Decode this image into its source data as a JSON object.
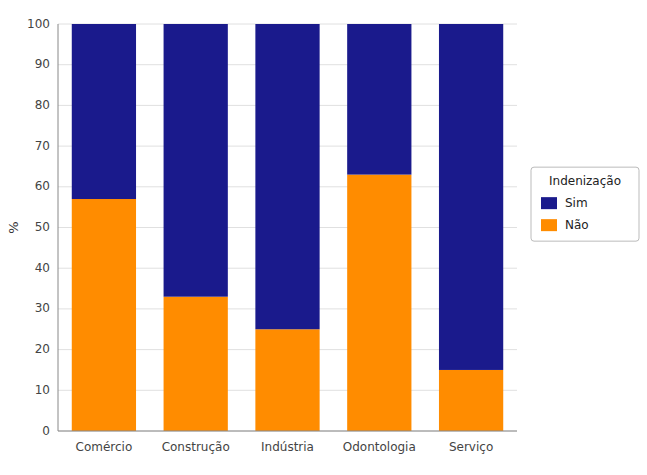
{
  "chart_data": {
    "type": "bar",
    "stacked": true,
    "categories": [
      "Comércio",
      "Construção",
      "Indústria",
      "Odontologia",
      "Serviço"
    ],
    "series": [
      {
        "name": "Não",
        "color": "#FF8C00",
        "values": [
          57,
          33,
          25,
          63,
          15
        ]
      },
      {
        "name": "Sim",
        "color": "#1a1a8c",
        "values": [
          43,
          67,
          75,
          37,
          85
        ]
      }
    ],
    "ylabel": "%",
    "ylim": [
      0,
      100
    ],
    "yticks": [
      0,
      10,
      20,
      30,
      40,
      50,
      60,
      70,
      80,
      90,
      100
    ],
    "grid": true,
    "legend": "right",
    "legend_title": "Indenização"
  }
}
